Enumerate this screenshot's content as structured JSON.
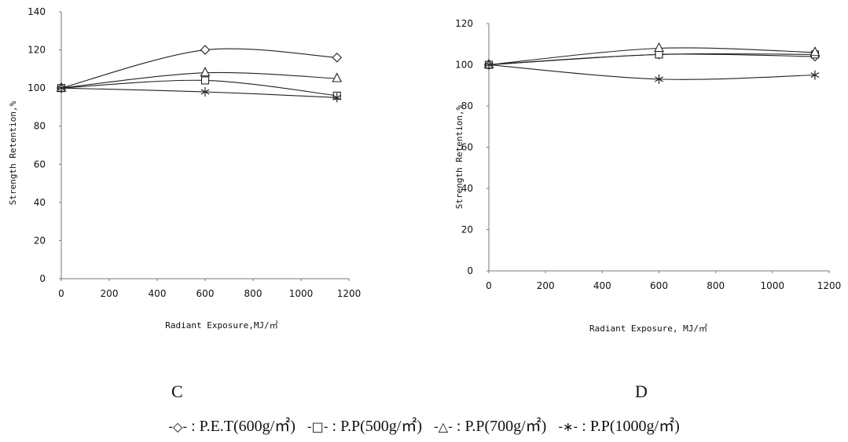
{
  "chart_data": [
    {
      "type": "line",
      "panel_label": "C",
      "xlabel": "Radiant Exposure,MJ/㎡",
      "ylabel": "Strength Retention,%",
      "xlim": [
        0,
        1200
      ],
      "ylim": [
        0,
        140
      ],
      "xticks": [
        0,
        200,
        400,
        600,
        800,
        1000,
        1200
      ],
      "yticks": [
        0,
        20,
        40,
        60,
        80,
        100,
        120,
        140
      ],
      "grid": false,
      "series": [
        {
          "name": "P.E.T(600g/㎡)",
          "marker": "diamond",
          "x": [
            0,
            600,
            1150
          ],
          "y": [
            100,
            120,
            116
          ]
        },
        {
          "name": "P.P(500g/㎡)",
          "marker": "square",
          "x": [
            0,
            600,
            1150
          ],
          "y": [
            100,
            104,
            96
          ]
        },
        {
          "name": "P.P(700g/㎡)",
          "marker": "triangle",
          "x": [
            0,
            600,
            1150
          ],
          "y": [
            100,
            108,
            105
          ]
        },
        {
          "name": "P.P(1000g/㎡)",
          "marker": "asterisk",
          "x": [
            0,
            600,
            1150
          ],
          "y": [
            100,
            98,
            95
          ]
        }
      ]
    },
    {
      "type": "line",
      "panel_label": "D",
      "xlabel": "Radiant Exposure, MJ/㎡",
      "ylabel": "Strength Retention,%",
      "xlim": [
        0,
        1200
      ],
      "ylim": [
        0,
        120
      ],
      "xticks": [
        0,
        200,
        400,
        600,
        800,
        1000,
        1200
      ],
      "yticks": [
        0,
        20,
        40,
        60,
        80,
        100,
        120
      ],
      "grid": false,
      "series": [
        {
          "name": "P.E.T(600g/㎡)",
          "marker": "diamond",
          "x": [
            0,
            600,
            1150
          ],
          "y": [
            100,
            105,
            104
          ]
        },
        {
          "name": "P.P(500g/㎡)",
          "marker": "square",
          "x": [
            0,
            600,
            1150
          ],
          "y": [
            100,
            105,
            105
          ]
        },
        {
          "name": "P.P(700g/㎡)",
          "marker": "triangle",
          "x": [
            0,
            600,
            1150
          ],
          "y": [
            100,
            108,
            106
          ]
        },
        {
          "name": "P.P(1000g/㎡)",
          "marker": "asterisk",
          "x": [
            0,
            600,
            1150
          ],
          "y": [
            100,
            93,
            95
          ]
        }
      ]
    }
  ],
  "legend": [
    {
      "symbol": "-◇-",
      "sep": " : ",
      "label": "P.E.T(600g/㎡)"
    },
    {
      "symbol": "-□-",
      "sep": " : ",
      "label": "P.P(500g/㎡)"
    },
    {
      "symbol": "-△-",
      "sep": " : ",
      "label": "P.P(700g/㎡)"
    },
    {
      "symbol": "-∗-",
      "sep": " : ",
      "label": "P.P(1000g/㎡)"
    }
  ]
}
